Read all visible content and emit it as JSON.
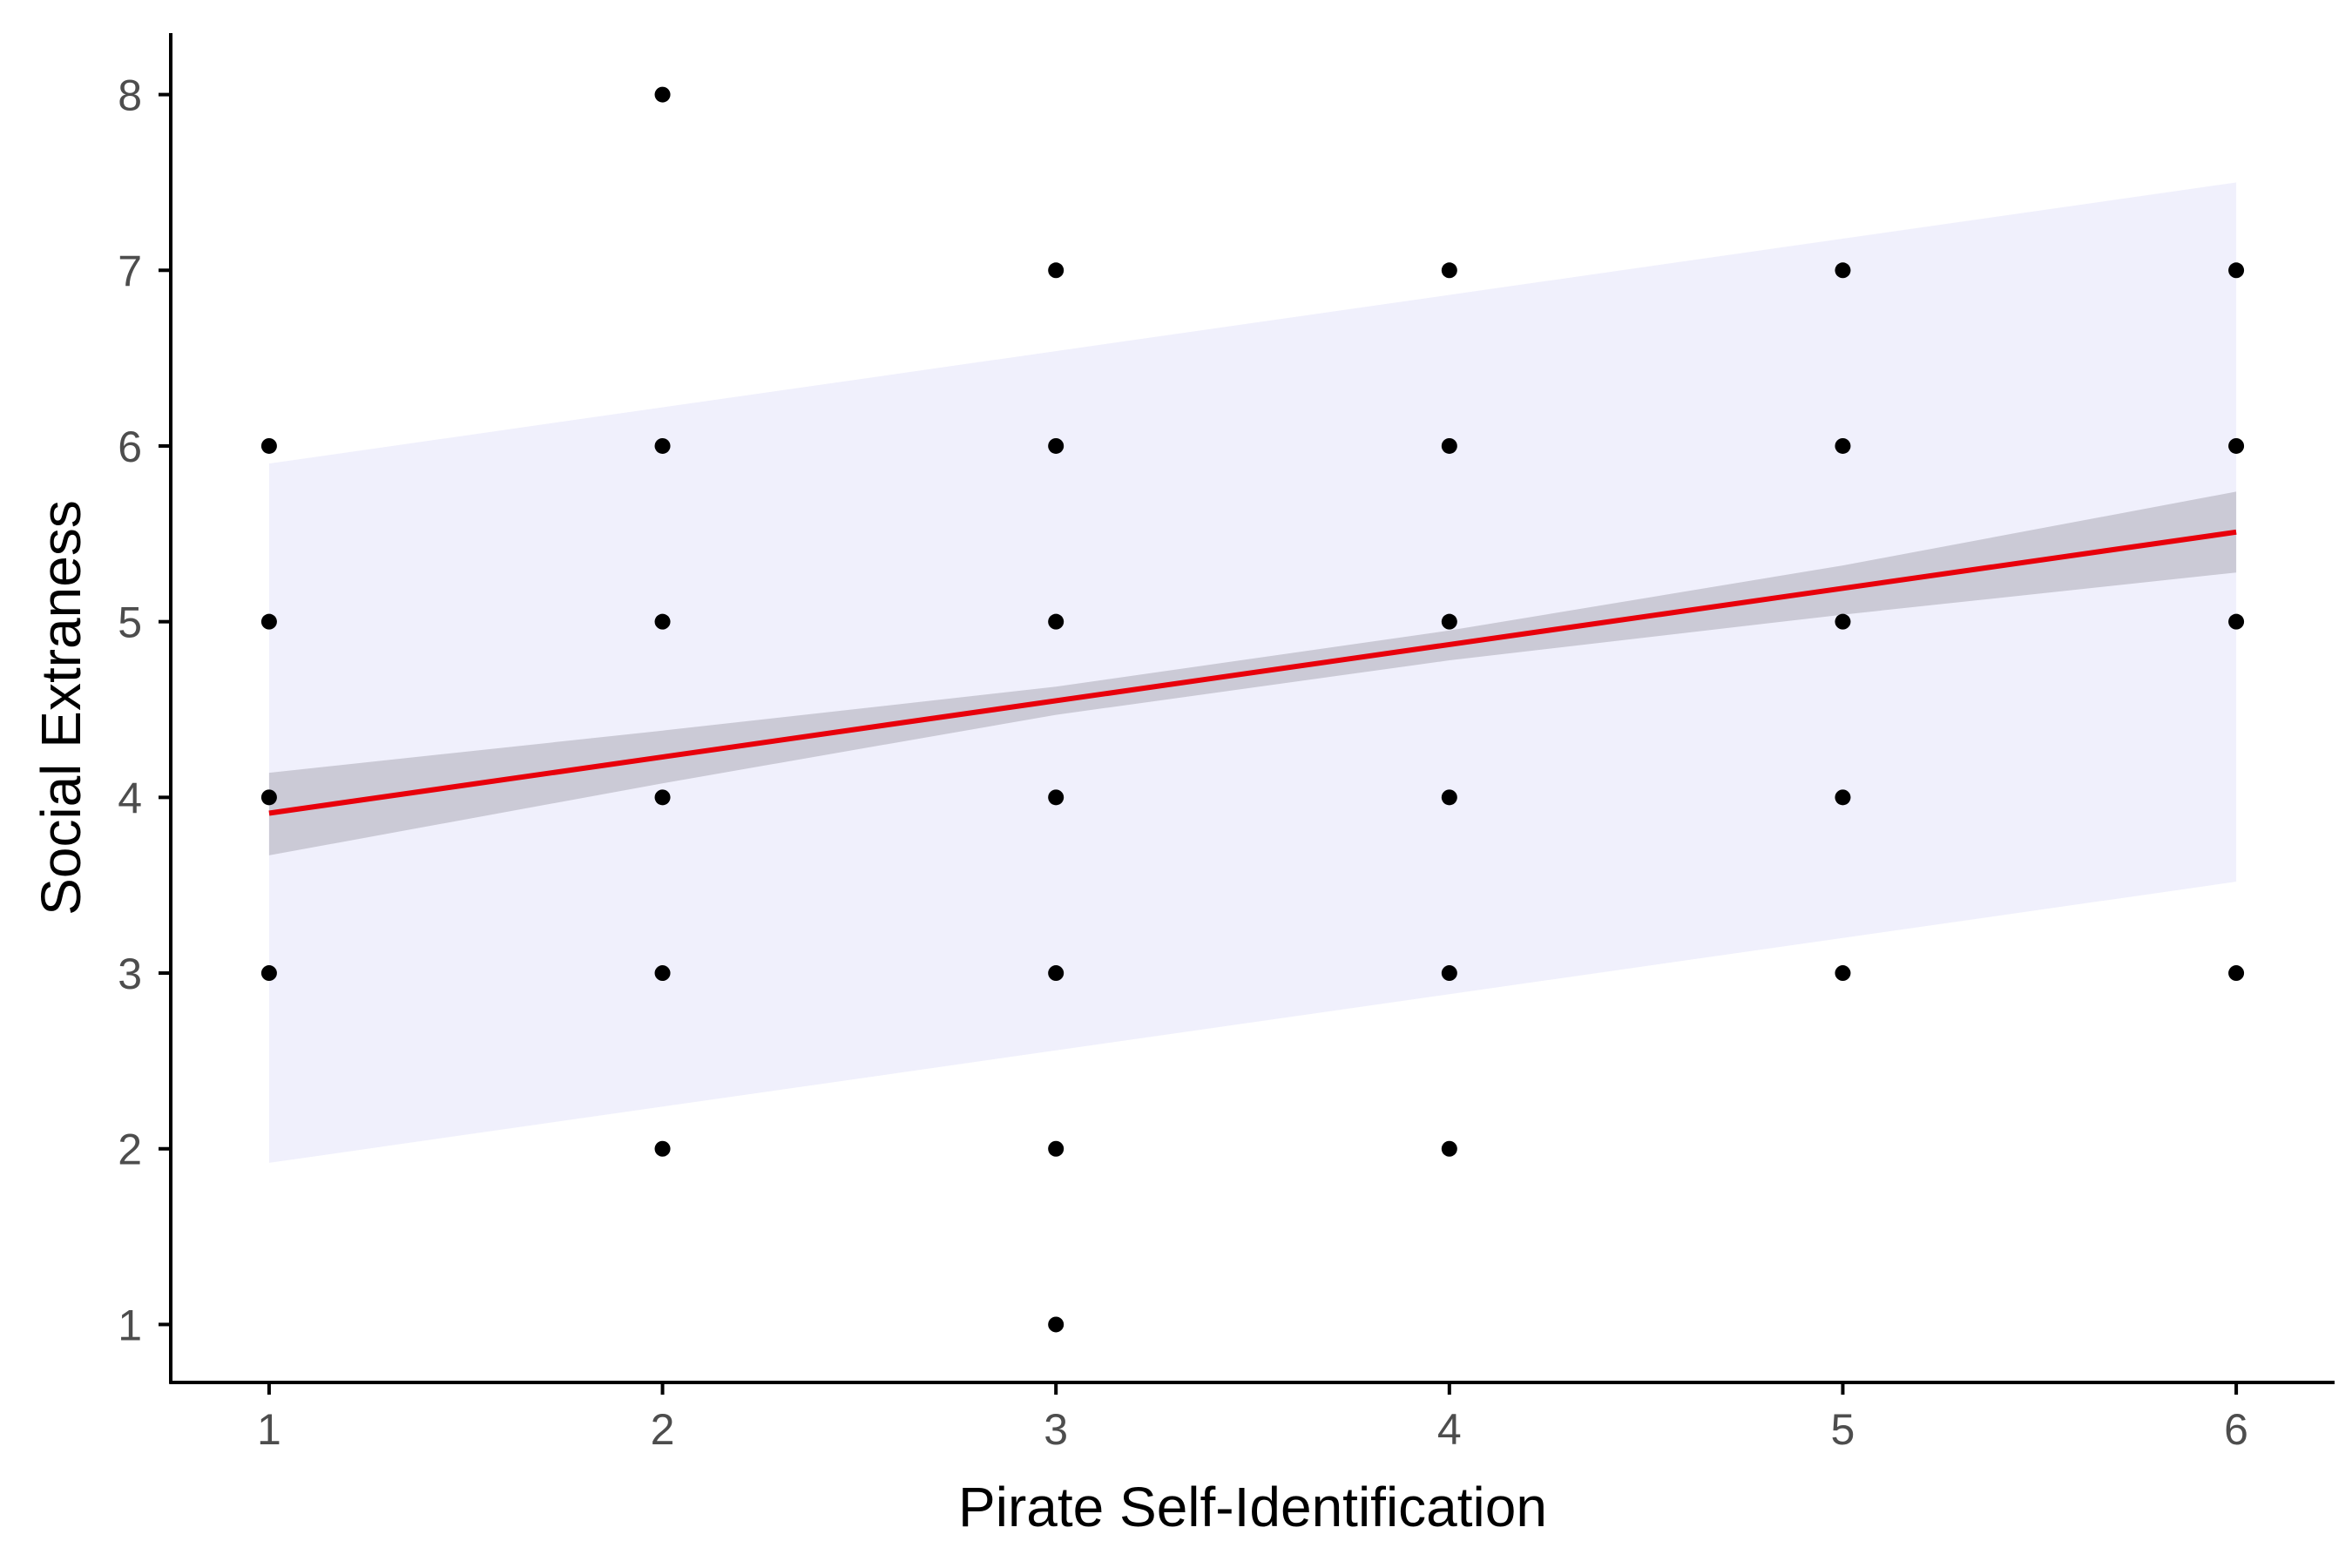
{
  "chart_data": {
    "type": "scatter",
    "title": "",
    "xlabel": "Pirate Self-Identification",
    "ylabel": "Social Extraness",
    "xlim": [
      0.75,
      6.25
    ],
    "ylim": [
      0.67,
      8.35
    ],
    "x_ticks": [
      1,
      2,
      3,
      4,
      5,
      6
    ],
    "y_ticks": [
      1,
      2,
      3,
      4,
      5,
      6,
      7,
      8
    ],
    "grid": false,
    "legend": "none",
    "points": [
      [
        1,
        6
      ],
      [
        1,
        5
      ],
      [
        1,
        4
      ],
      [
        1,
        3
      ],
      [
        2,
        8
      ],
      [
        2,
        6
      ],
      [
        2,
        5
      ],
      [
        2,
        4
      ],
      [
        2,
        3
      ],
      [
        2,
        2
      ],
      [
        3,
        7
      ],
      [
        3,
        6
      ],
      [
        3,
        5
      ],
      [
        3,
        4
      ],
      [
        3,
        3
      ],
      [
        3,
        2
      ],
      [
        3,
        1
      ],
      [
        4,
        7
      ],
      [
        4,
        6
      ],
      [
        4,
        5
      ],
      [
        4,
        4
      ],
      [
        4,
        3
      ],
      [
        4,
        2
      ],
      [
        5,
        7
      ],
      [
        5,
        6
      ],
      [
        5,
        5
      ],
      [
        5,
        4
      ],
      [
        5,
        3
      ],
      [
        6,
        7
      ],
      [
        6,
        6
      ],
      [
        6,
        5
      ],
      [
        6,
        3
      ]
    ],
    "fit_line": {
      "x": [
        1,
        6
      ],
      "y": [
        3.91,
        5.51
      ]
    },
    "confidence_band": {
      "x": [
        1,
        2,
        3,
        4,
        5,
        6
      ],
      "lower": [
        3.67,
        4.08,
        4.47,
        4.78,
        5.04,
        5.28
      ],
      "upper": [
        4.14,
        4.38,
        4.63,
        4.95,
        5.32,
        5.74
      ]
    },
    "prediction_band": {
      "x": [
        1,
        6
      ],
      "lower": [
        1.92,
        3.52
      ],
      "upper": [
        5.9,
        7.5
      ]
    },
    "colors": {
      "points": "#000000",
      "fit_line": "#e8000b",
      "confidence_band": "#cbcad6",
      "prediction_band": "#f0f0fc",
      "axis": "#000000",
      "tick_label": "#4d4d4d"
    }
  }
}
